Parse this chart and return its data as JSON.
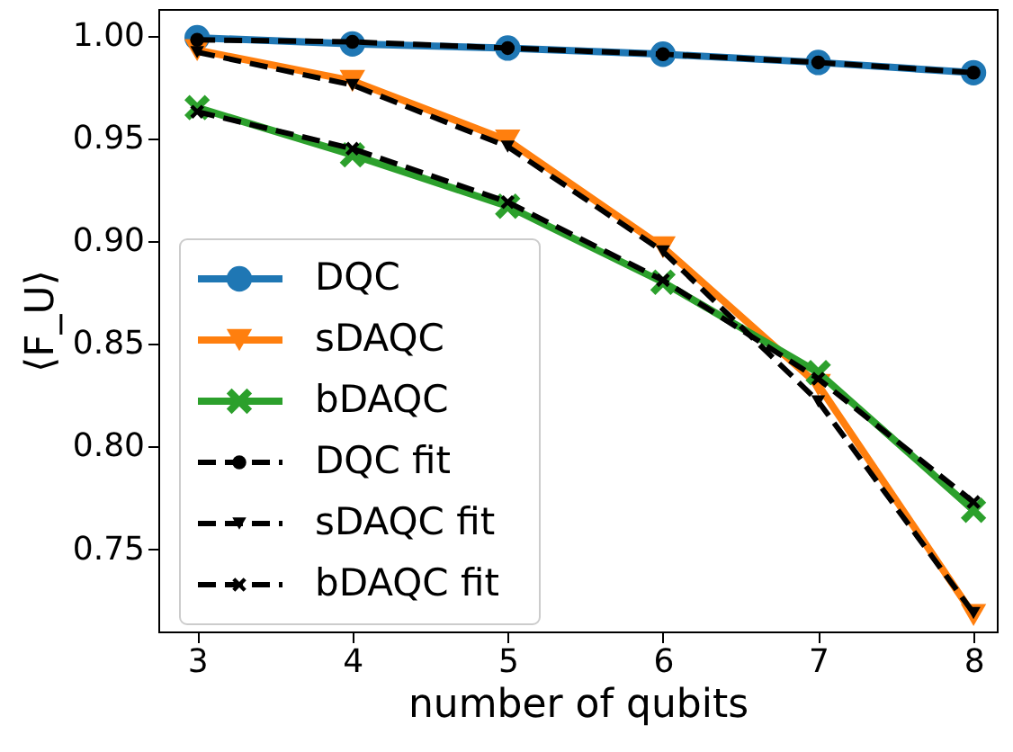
{
  "chart_data": {
    "type": "line",
    "xlabel": "number of qubits",
    "ylabel": "⟨F_U⟩",
    "x": [
      3,
      4,
      5,
      6,
      7,
      8
    ],
    "xlim": [
      2.75,
      8.15
    ],
    "xticks": [
      3,
      4,
      5,
      6,
      7,
      8
    ],
    "ylim": [
      0.71,
      1.013
    ],
    "yticks": [
      {
        "value": 0.75,
        "label": "0.75"
      },
      {
        "value": 0.8,
        "label": "0.80"
      },
      {
        "value": 0.85,
        "label": "0.85"
      },
      {
        "value": 0.9,
        "label": "0.90"
      },
      {
        "value": 0.95,
        "label": "0.95"
      },
      {
        "value": 1.0,
        "label": "1.00"
      }
    ],
    "grid": false,
    "legend": "bottom left",
    "series": [
      {
        "name": "DQC",
        "color": "#1f77b4",
        "marker": "circle",
        "line_style": "solid",
        "values": [
          0.999,
          0.996,
          0.994,
          0.991,
          0.987,
          0.982
        ]
      },
      {
        "name": "sDAQC",
        "color": "#ff7f0e",
        "marker": "triangle",
        "line_style": "solid",
        "values": [
          0.993,
          0.978,
          0.949,
          0.897,
          0.83,
          0.718
        ]
      },
      {
        "name": "bDAQC",
        "color": "#2ca02c",
        "marker": "cross",
        "line_style": "solid",
        "values": [
          0.965,
          0.942,
          0.917,
          0.88,
          0.836,
          0.769
        ]
      },
      {
        "name": "DQC fit",
        "color": "#000000",
        "marker": "circle",
        "line_style": "dashed",
        "values": [
          0.998,
          0.997,
          0.994,
          0.991,
          0.987,
          0.982
        ]
      },
      {
        "name": "sDAQC fit",
        "color": "#000000",
        "marker": "triangle",
        "line_style": "dashed",
        "values": [
          0.992,
          0.976,
          0.946,
          0.895,
          0.822,
          0.719
        ]
      },
      {
        "name": "bDAQC fit",
        "color": "#000000",
        "marker": "cross",
        "line_style": "dashed",
        "values": [
          0.963,
          0.945,
          0.919,
          0.881,
          0.833,
          0.773
        ]
      }
    ]
  }
}
